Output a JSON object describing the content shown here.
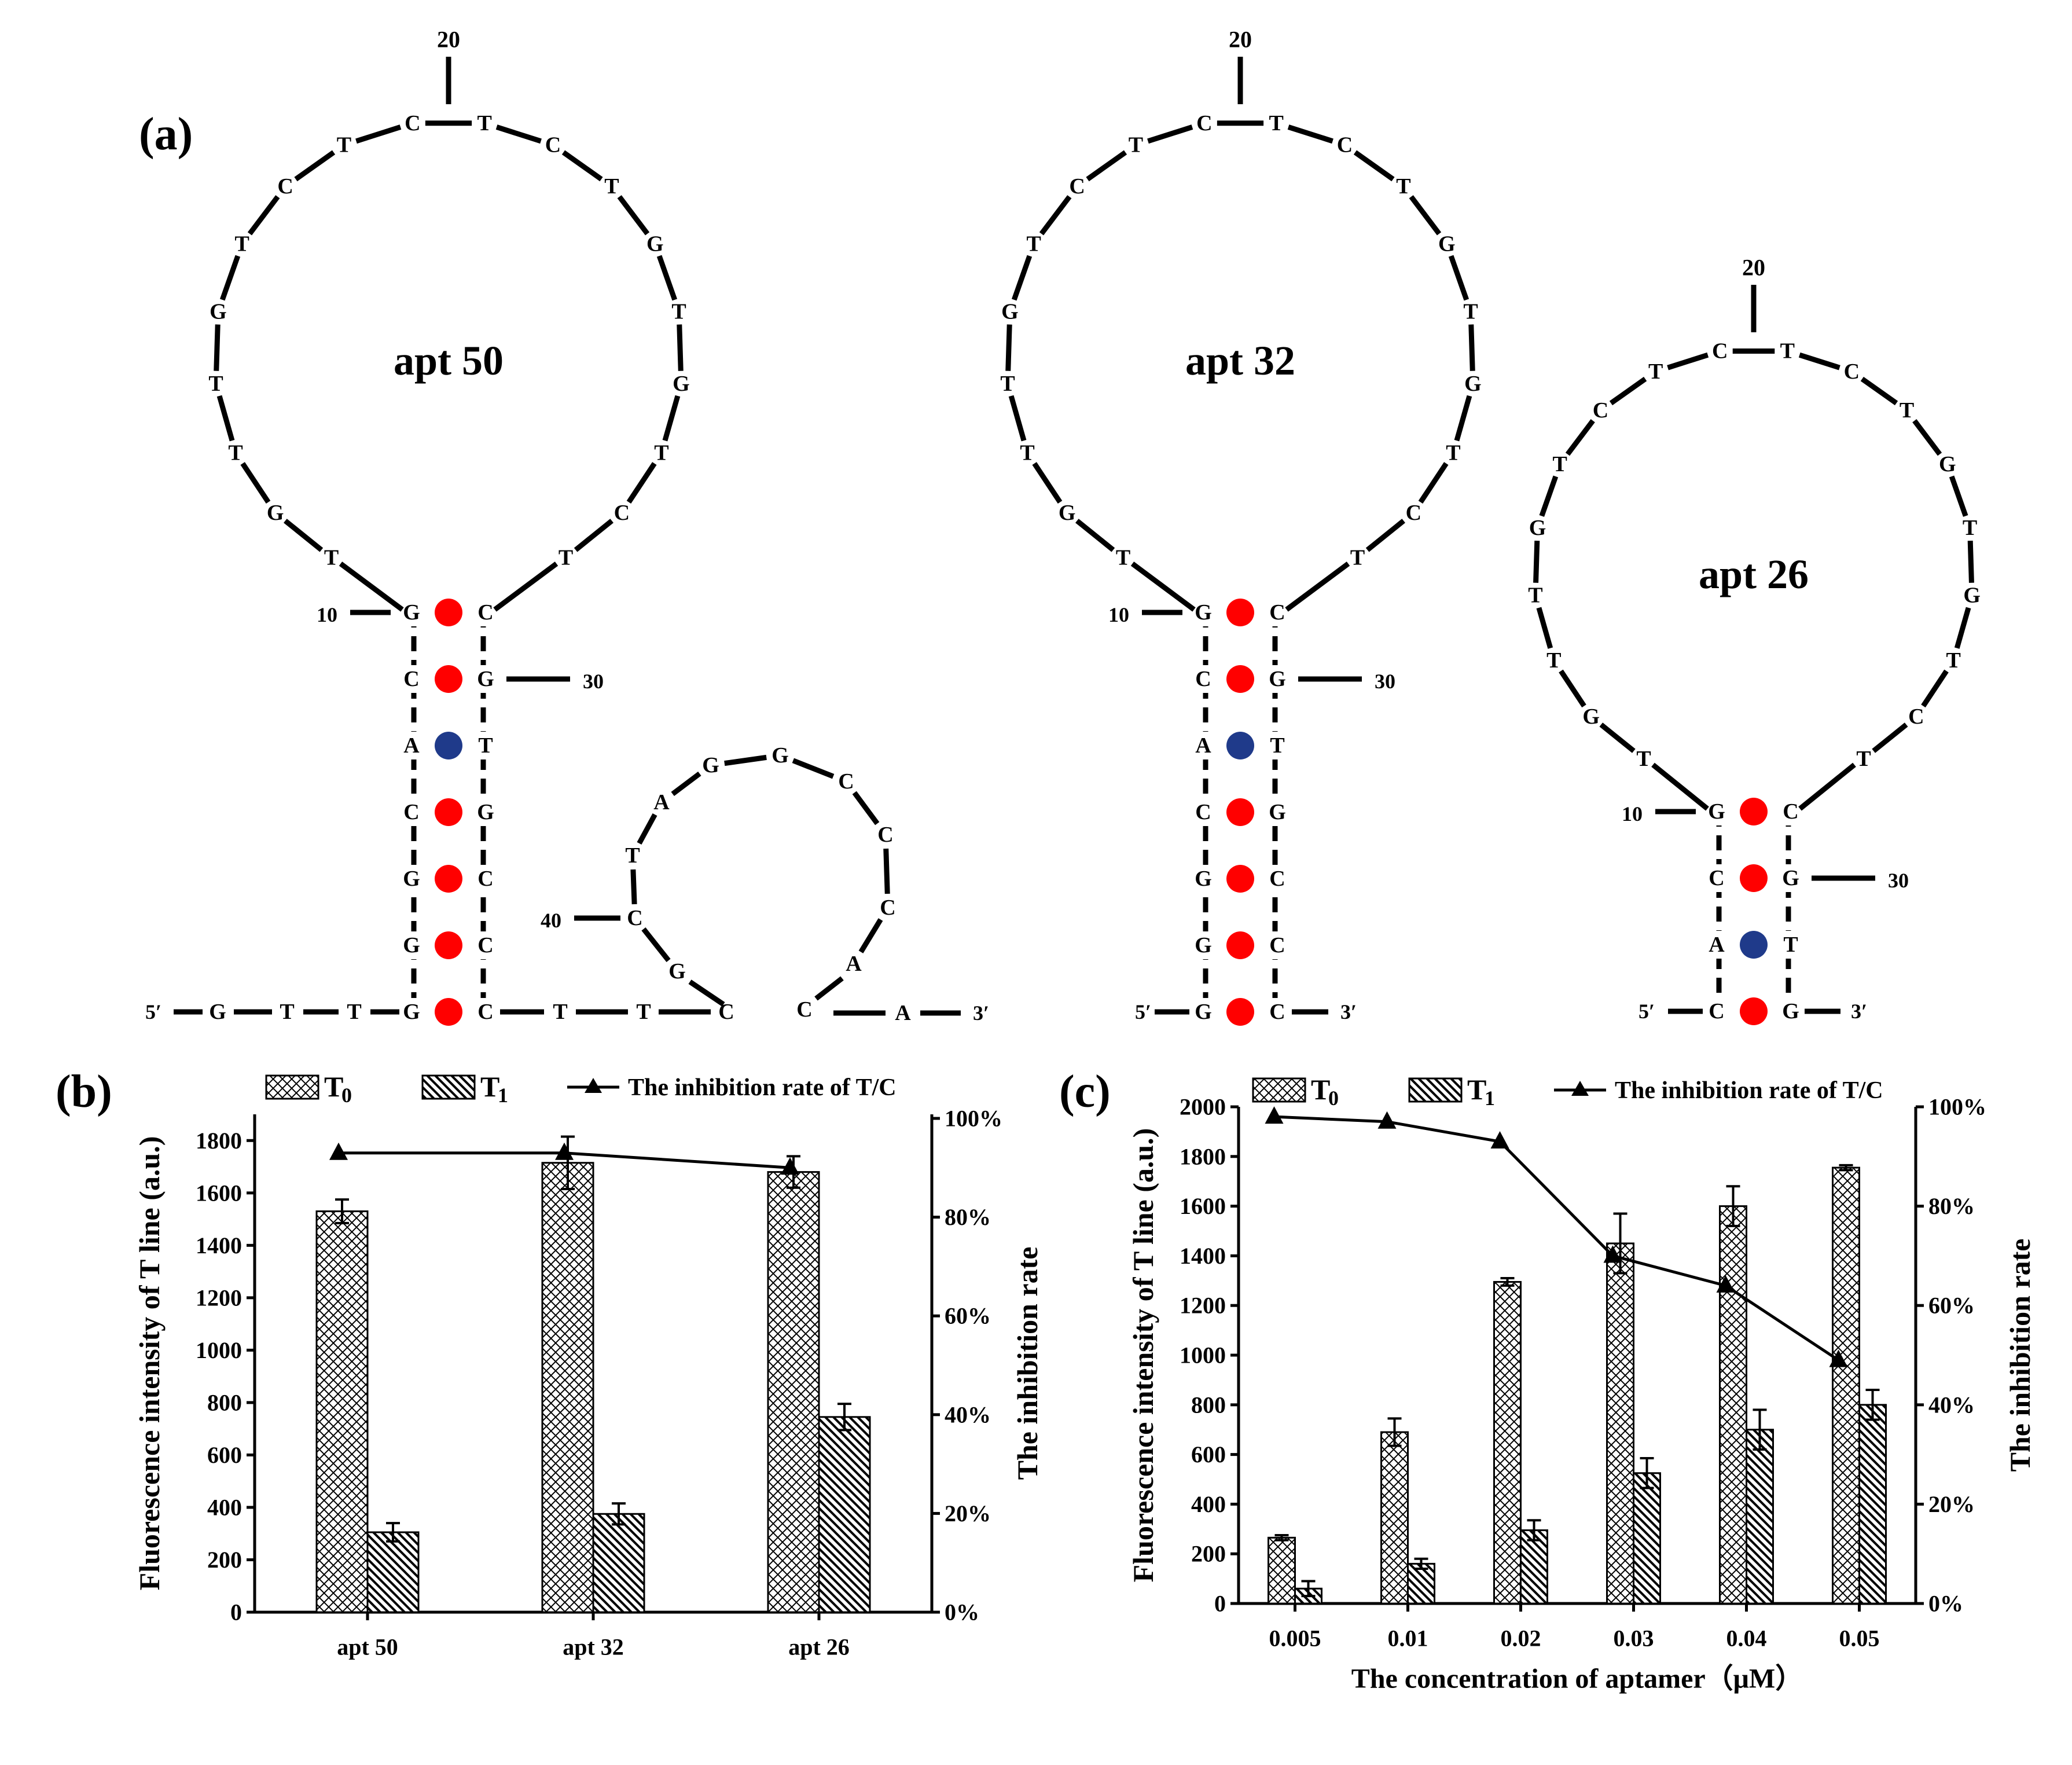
{
  "panel_labels": {
    "a": "(a)",
    "b": "(b)",
    "c": "(c)"
  },
  "structures": [
    {
      "name": "apt 50",
      "stem_5p": [
        "G",
        "C",
        "A",
        "C",
        "G",
        "G",
        "G"
      ],
      "stem_3p": [
        "C",
        "G",
        "T",
        "G",
        "C",
        "C",
        "C"
      ],
      "pair_colors": [
        "red",
        "red",
        "blue",
        "red",
        "red",
        "red",
        "red"
      ],
      "loop": [
        "T",
        "G",
        "T",
        "T",
        "G",
        "T",
        "C",
        "T",
        "C",
        "T",
        "C",
        "T",
        "G",
        "T",
        "G",
        "T",
        "C",
        "T"
      ],
      "numbers": {
        "n10": "10",
        "n20": "20",
        "n30": "30",
        "n40": "40"
      },
      "tail_5p": [
        "G",
        "T",
        "T"
      ],
      "end_5p": "5′",
      "mid_tail": [
        "T",
        "T",
        "C"
      ],
      "hairpin2_loop": [
        "C",
        "T",
        "A",
        "G",
        "G",
        "C",
        "C",
        "C",
        "A"
      ],
      "hairpin2_start": "G",
      "tail_3p": [
        "C",
        "A"
      ],
      "end_3p": "3′"
    },
    {
      "name": "apt 32",
      "stem_5p": [
        "G",
        "C",
        "A",
        "C",
        "G",
        "G",
        "G"
      ],
      "stem_3p": [
        "C",
        "G",
        "T",
        "G",
        "C",
        "C",
        "C"
      ],
      "pair_colors": [
        "red",
        "red",
        "blue",
        "red",
        "red",
        "red",
        "red"
      ],
      "loop": [
        "T",
        "G",
        "T",
        "T",
        "G",
        "T",
        "C",
        "T",
        "C",
        "T",
        "C",
        "T",
        "G",
        "T",
        "G",
        "T",
        "C",
        "T"
      ],
      "numbers": {
        "n10": "10",
        "n20": "20",
        "n30": "30"
      },
      "end_5p": "5′",
      "end_3p": "3′"
    },
    {
      "name": "apt 26",
      "stem_5p": [
        "G",
        "C",
        "A",
        "C"
      ],
      "stem_3p": [
        "C",
        "G",
        "T",
        "G"
      ],
      "pair_colors": [
        "red",
        "red",
        "blue",
        "red"
      ],
      "loop": [
        "T",
        "G",
        "T",
        "T",
        "G",
        "T",
        "C",
        "T",
        "C",
        "T",
        "C",
        "T",
        "G",
        "T",
        "G",
        "T",
        "C",
        "T"
      ],
      "numbers": {
        "n10": "10",
        "n20": "20",
        "n30": "30"
      },
      "end_5p": "5′",
      "end_3p": "3′"
    }
  ],
  "pair_color_hex": {
    "red": "#ff0000",
    "blue": "#1f3a8a"
  },
  "legend": {
    "t0": "T",
    "t0_sub": "0",
    "t1": "T",
    "t1_sub": "1",
    "line": "The inhibition rate of T/C"
  },
  "chart_data": [
    {
      "panel": "b",
      "type": "bar",
      "categories": [
        "apt 50",
        "apt 32",
        "apt 26"
      ],
      "series": [
        {
          "name": "T0",
          "values": [
            1530,
            1715,
            1680
          ],
          "errors": [
            45,
            100,
            60
          ]
        },
        {
          "name": "T1",
          "values": [
            305,
            375,
            745
          ],
          "errors": [
            35,
            40,
            50
          ]
        }
      ],
      "line": {
        "name": "The inhibition rate of T/C",
        "values": [
          93,
          93,
          90
        ]
      },
      "ylabel": "Fluorescence intensity of T line (a.u.)",
      "y2label": "The inhibition rate",
      "xlabel": "",
      "ylim": [
        0,
        1900
      ],
      "yticks": [
        0,
        200,
        400,
        600,
        800,
        1000,
        1200,
        1400,
        1600,
        1800
      ],
      "y2lim": [
        0,
        100
      ],
      "y2ticks": [
        "0%",
        "20%",
        "40%",
        "60%",
        "80%",
        "100%"
      ]
    },
    {
      "panel": "c",
      "type": "bar",
      "categories": [
        "0.005",
        "0.01",
        "0.02",
        "0.03",
        "0.04",
        "0.05"
      ],
      "series": [
        {
          "name": "T0",
          "values": [
            265,
            690,
            1295,
            1450,
            1600,
            1755
          ],
          "errors": [
            10,
            55,
            15,
            120,
            80,
            10
          ]
        },
        {
          "name": "T1",
          "values": [
            60,
            160,
            295,
            525,
            700,
            800
          ],
          "errors": [
            30,
            20,
            40,
            60,
            80,
            60
          ]
        }
      ],
      "line": {
        "name": "The inhibition rate of T/C",
        "values": [
          98,
          97,
          93,
          70,
          64,
          49
        ]
      },
      "ylabel": "Fluorescence intensity of T line (a.u.)",
      "y2label": "The inhibition rate",
      "xlabel": "The concentration of aptamer（μM）",
      "ylim": [
        0,
        2000
      ],
      "yticks": [
        0,
        200,
        400,
        600,
        800,
        1000,
        1200,
        1400,
        1600,
        1800,
        2000
      ],
      "y2lim": [
        0,
        100
      ],
      "y2ticks": [
        "0%",
        "20%",
        "40%",
        "60%",
        "80%",
        "100%"
      ]
    }
  ]
}
